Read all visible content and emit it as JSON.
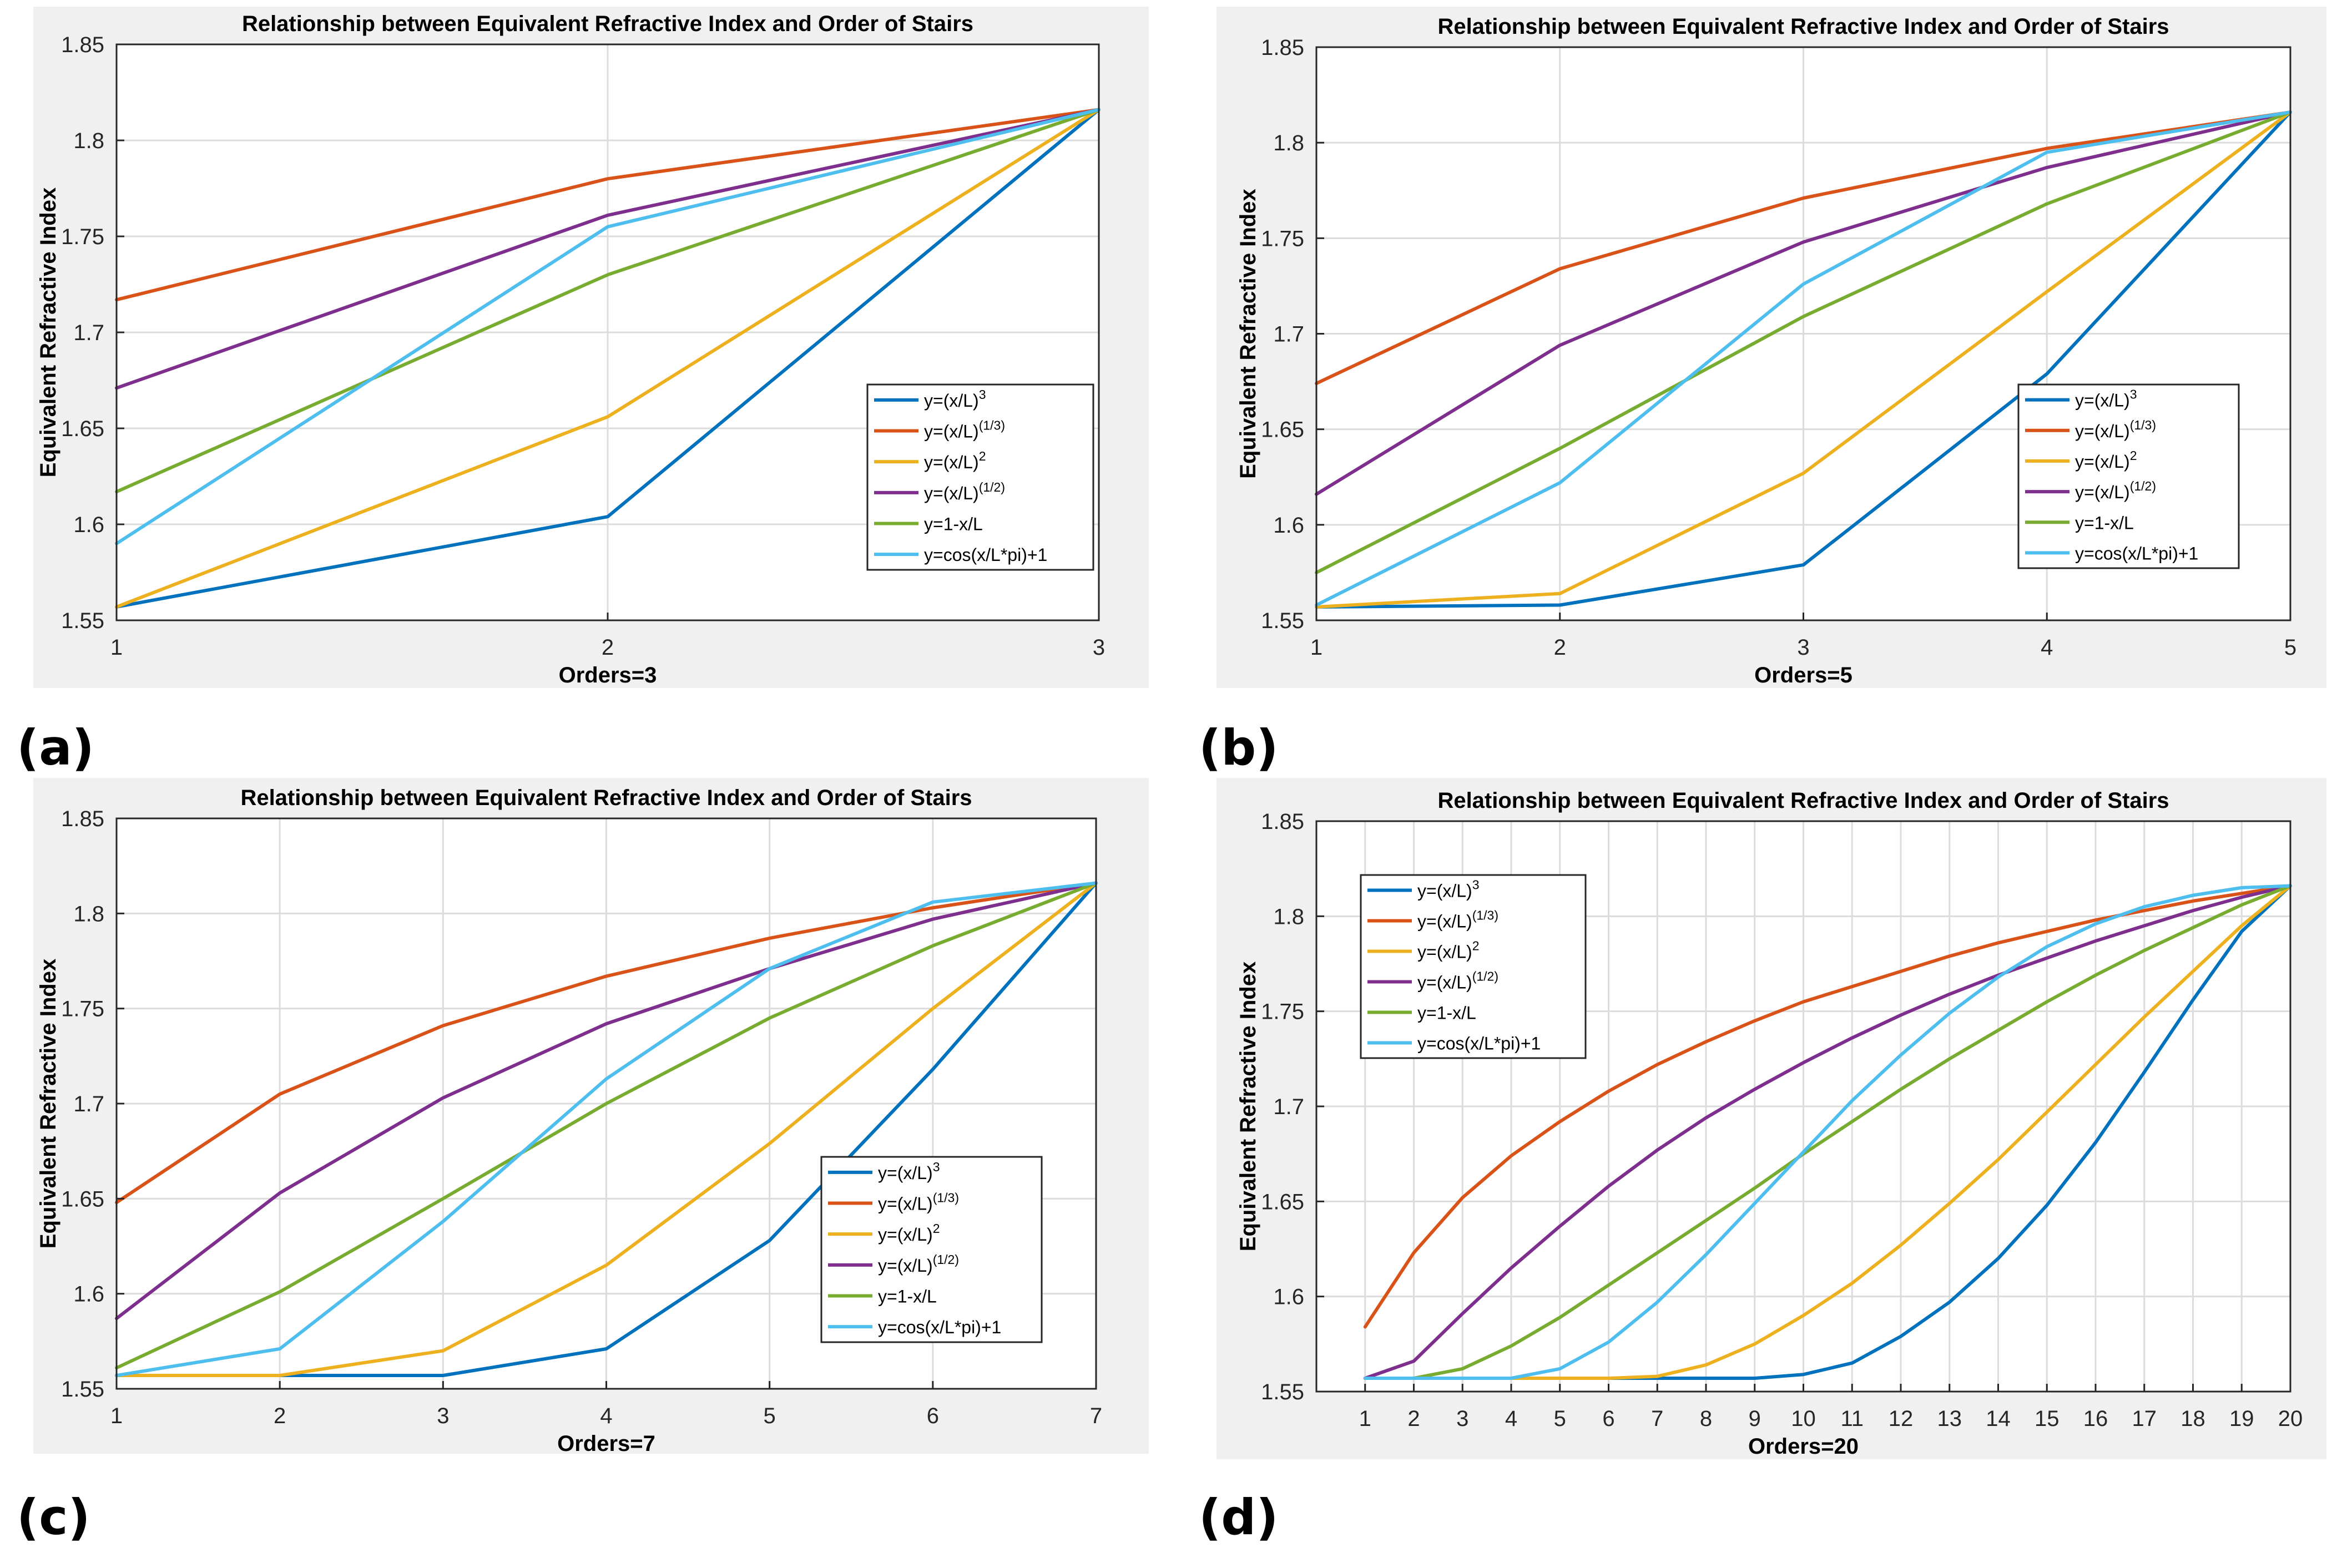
{
  "colors": {
    "panel_bg": "#f0f0f0",
    "plot_bg": "#ffffff",
    "grid": "#dcdcdc",
    "axis": "#262626",
    "series": [
      "#0072BD",
      "#D95319",
      "#EDB120",
      "#7E2F8E",
      "#77AC30",
      "#4DBEEE"
    ]
  },
  "legend_labels": [
    {
      "base": "y=(x/L)",
      "sup": "3"
    },
    {
      "base": "y=(x/L)",
      "sup": "(1/3)"
    },
    {
      "base": "y=(x/L)",
      "sup": "2"
    },
    {
      "base": "y=(x/L)",
      "sup": "(1/2)"
    },
    {
      "base": "y=1-x/L",
      "sup": ""
    },
    {
      "base": "y=cos(x/L*pi)+1",
      "sup": ""
    }
  ],
  "chart_data": [
    {
      "type": "line",
      "panel_label": "(a)",
      "title": "Relationship between Equivalent Refractive Index and Order of Stairs",
      "xlabel": "Orders=3",
      "ylabel": "Equivalent Refractive Index",
      "xlim": [
        1,
        3
      ],
      "ylim": [
        1.55,
        1.85
      ],
      "xticks": [
        1,
        2,
        3
      ],
      "yticks": [
        1.55,
        1.6,
        1.65,
        1.7,
        1.75,
        1.8,
        1.85
      ],
      "ytick_labels": [
        "1.55",
        "1.6",
        "1.65",
        "1.7",
        "1.75",
        "1.8",
        "1.85"
      ],
      "grid": true,
      "legend_position": "right-lower",
      "x": [
        1,
        2,
        3
      ],
      "series": [
        {
          "values": [
            1.557,
            1.604,
            1.816
          ]
        },
        {
          "values": [
            1.717,
            1.78,
            1.816
          ]
        },
        {
          "values": [
            1.557,
            1.656,
            1.816
          ]
        },
        {
          "values": [
            1.671,
            1.761,
            1.816
          ]
        },
        {
          "values": [
            1.617,
            1.73,
            1.816
          ]
        },
        {
          "values": [
            1.59,
            1.755,
            1.816
          ]
        }
      ]
    },
    {
      "type": "line",
      "panel_label": "(b)",
      "title": "Relationship between Equivalent Refractive Index and Order of Stairs",
      "xlabel": "Orders=5",
      "ylabel": "Equivalent Refractive Index",
      "xlim": [
        1,
        5
      ],
      "ylim": [
        1.55,
        1.85
      ],
      "xticks": [
        1,
        2,
        3,
        4,
        5
      ],
      "yticks": [
        1.55,
        1.6,
        1.65,
        1.7,
        1.75,
        1.8,
        1.85
      ],
      "ytick_labels": [
        "1.55",
        "1.6",
        "1.65",
        "1.7",
        "1.75",
        "1.8",
        "1.85"
      ],
      "grid": true,
      "legend_position": "right-lower",
      "x": [
        1,
        2,
        3,
        4,
        5
      ],
      "series": [
        {
          "values": [
            1.557,
            1.558,
            1.579,
            1.679,
            1.816
          ]
        },
        {
          "values": [
            1.674,
            1.734,
            1.771,
            1.797,
            1.816
          ]
        },
        {
          "values": [
            1.557,
            1.564,
            1.627,
            1.722,
            1.816
          ]
        },
        {
          "values": [
            1.616,
            1.694,
            1.748,
            1.787,
            1.816
          ]
        },
        {
          "values": [
            1.575,
            1.64,
            1.709,
            1.768,
            1.816
          ]
        },
        {
          "values": [
            1.558,
            1.622,
            1.726,
            1.795,
            1.816
          ]
        }
      ]
    },
    {
      "type": "line",
      "panel_label": "(c)",
      "title": "Relationship between Equivalent Refractive Index and Order of Stairs",
      "xlabel": "Orders=7",
      "ylabel": "Equivalent Refractive Index",
      "xlim": [
        1,
        7
      ],
      "ylim": [
        1.55,
        1.85
      ],
      "xticks": [
        1,
        2,
        3,
        4,
        5,
        6,
        7
      ],
      "yticks": [
        1.55,
        1.6,
        1.65,
        1.7,
        1.75,
        1.8,
        1.85
      ],
      "ytick_labels": [
        "1.55",
        "1.6",
        "1.65",
        "1.7",
        "1.75",
        "1.8",
        "1.85"
      ],
      "grid": true,
      "legend_position": "right-lower",
      "x": [
        1,
        2,
        3,
        4,
        5,
        6,
        7
      ],
      "series": [
        {
          "values": [
            1.557,
            1.557,
            1.557,
            1.571,
            1.628,
            1.718,
            1.816
          ]
        },
        {
          "values": [
            1.648,
            1.705,
            1.741,
            1.767,
            1.787,
            1.803,
            1.816
          ]
        },
        {
          "values": [
            1.557,
            1.557,
            1.57,
            1.615,
            1.679,
            1.75,
            1.816
          ]
        },
        {
          "values": [
            1.587,
            1.653,
            1.703,
            1.742,
            1.771,
            1.797,
            1.816
          ]
        },
        {
          "values": [
            1.561,
            1.601,
            1.65,
            1.7,
            1.745,
            1.783,
            1.816
          ]
        },
        {
          "values": [
            1.557,
            1.571,
            1.638,
            1.713,
            1.771,
            1.806,
            1.816
          ]
        }
      ]
    },
    {
      "type": "line",
      "panel_label": "(d)",
      "title": "Relationship between Equivalent Refractive Index and Order of Stairs",
      "xlabel": "Orders=20",
      "ylabel": "Equivalent Refractive Index",
      "xlim": [
        0,
        20
      ],
      "ylim": [
        1.55,
        1.85
      ],
      "xticks": [
        1,
        2,
        3,
        4,
        5,
        6,
        7,
        8,
        9,
        10,
        11,
        12,
        13,
        14,
        15,
        16,
        17,
        18,
        19,
        20
      ],
      "yticks": [
        1.55,
        1.6,
        1.65,
        1.7,
        1.75,
        1.8,
        1.85
      ],
      "ytick_labels": [
        "1.55",
        "1.6",
        "1.65",
        "1.7",
        "1.75",
        "1.8",
        "1.85"
      ],
      "grid": true,
      "legend_position": "left-upper",
      "x": [
        1,
        2,
        3,
        4,
        5,
        6,
        7,
        8,
        9,
        10,
        11,
        12,
        13,
        14,
        15,
        16,
        17,
        18,
        19,
        20
      ],
      "series": [
        {
          "values": [
            1.557,
            1.557,
            1.557,
            1.557,
            1.557,
            1.557,
            1.557,
            1.557,
            1.557,
            1.559,
            1.565,
            1.579,
            1.597,
            1.62,
            1.648,
            1.681,
            1.718,
            1.756,
            1.792,
            1.816
          ]
        },
        {
          "values": [
            1.584,
            1.623,
            1.652,
            1.674,
            1.692,
            1.708,
            1.722,
            1.734,
            1.745,
            1.755,
            1.763,
            1.771,
            1.779,
            1.786,
            1.792,
            1.798,
            1.803,
            1.808,
            1.812,
            1.816
          ]
        },
        {
          "values": [
            1.557,
            1.557,
            1.557,
            1.557,
            1.557,
            1.557,
            1.558,
            1.564,
            1.575,
            1.59,
            1.607,
            1.627,
            1.649,
            1.672,
            1.697,
            1.722,
            1.747,
            1.771,
            1.795,
            1.816
          ]
        },
        {
          "values": [
            1.557,
            1.566,
            1.591,
            1.615,
            1.637,
            1.658,
            1.677,
            1.694,
            1.709,
            1.723,
            1.736,
            1.748,
            1.759,
            1.769,
            1.778,
            1.787,
            1.795,
            1.803,
            1.81,
            1.816
          ]
        },
        {
          "values": [
            1.557,
            1.557,
            1.562,
            1.574,
            1.589,
            1.606,
            1.623,
            1.64,
            1.657,
            1.675,
            1.692,
            1.709,
            1.725,
            1.74,
            1.755,
            1.769,
            1.782,
            1.794,
            1.806,
            1.816
          ]
        },
        {
          "values": [
            1.557,
            1.557,
            1.557,
            1.557,
            1.562,
            1.576,
            1.597,
            1.622,
            1.649,
            1.676,
            1.703,
            1.727,
            1.749,
            1.768,
            1.784,
            1.796,
            1.805,
            1.811,
            1.815,
            1.816
          ]
        }
      ]
    }
  ]
}
